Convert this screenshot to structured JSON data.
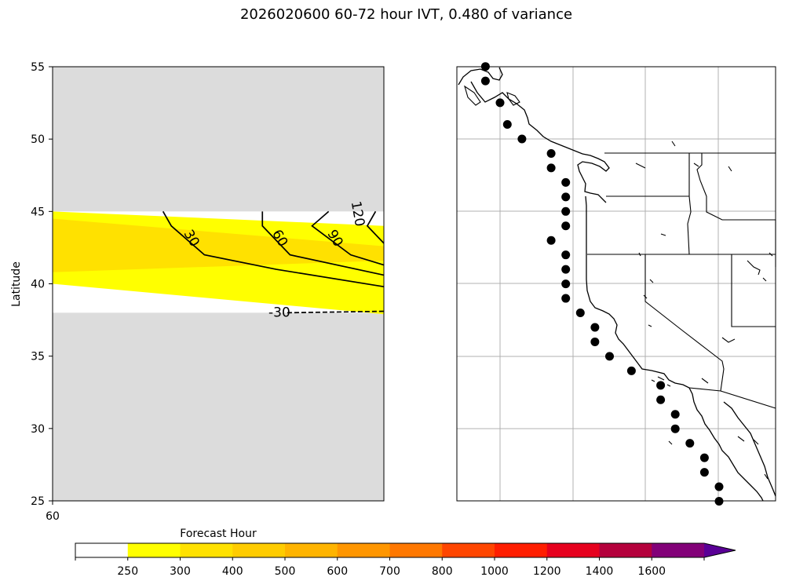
{
  "figure": {
    "title": "2026020600 60-72 hour IVT, 0.480 of variance"
  },
  "chart_data": [
    {
      "type": "heatmap",
      "panel": "left",
      "ylabel": "Latitude",
      "xlabel": "",
      "ylim": [
        25,
        55
      ],
      "xlim": [
        60,
        72
      ],
      "ytick_labels": [
        "25",
        "30",
        "35",
        "40",
        "45",
        "50",
        "55"
      ],
      "yticks": [
        25,
        30,
        35,
        40,
        45,
        50,
        55
      ],
      "xtick_labels": [
        "60"
      ],
      "xticks": [
        60
      ],
      "background": "masked (gray) outside 38–45 N",
      "valid_band_lat": [
        38,
        45
      ],
      "fill_bands": [
        {
          "color": "#ffff00",
          "level_range": "250-300",
          "lat_top_at_x60": 45.0,
          "lat_top_at_x72": 44.0,
          "lat_bottom_at_x60": 40.0,
          "lat_bottom_at_x72": 37.9
        },
        {
          "color": "#ffe100",
          "level_range": "300-400",
          "lat_top_at_x60": 44.5,
          "lat_top_at_x72": 42.6,
          "lat_bottom_at_x60": 40.8,
          "lat_bottom_at_x72": 41.6
        }
      ],
      "contours": [
        {
          "label": "30",
          "points": [
            [
              64.0,
              45.0
            ],
            [
              64.3,
              44.0
            ],
            [
              65.5,
              42.0
            ],
            [
              68.1,
              41.0
            ],
            [
              72.0,
              39.8
            ]
          ]
        },
        {
          "label": "60",
          "points": [
            [
              67.6,
              45.0
            ],
            [
              67.6,
              44.0
            ],
            [
              68.6,
              42.0
            ],
            [
              72.0,
              40.6
            ]
          ]
        },
        {
          "label": "90",
          "points": [
            [
              70.0,
              45.0
            ],
            [
              69.4,
              44.0
            ],
            [
              70.8,
              42.0
            ],
            [
              72.0,
              41.3
            ]
          ]
        },
        {
          "label": "120",
          "points": [
            [
              71.7,
              45.0
            ],
            [
              71.4,
              44.0
            ],
            [
              72.0,
              42.8
            ]
          ]
        },
        {
          "label": "-30",
          "dashed": true,
          "points": [
            [
              68.5,
              38.0
            ],
            [
              72.0,
              38.1
            ]
          ]
        }
      ]
    },
    {
      "type": "scatter",
      "panel": "right",
      "description_kind": "map",
      "points_lat": [
        55,
        54,
        52.5,
        51,
        50,
        49,
        48,
        47,
        46,
        45,
        44,
        43,
        42,
        41,
        40,
        39,
        38,
        37,
        36,
        35,
        34,
        33,
        32,
        31,
        30,
        29,
        28,
        27,
        26,
        25
      ],
      "points_lon": [
        -131,
        -131,
        -130,
        -129.5,
        -128.5,
        -126.5,
        -126.5,
        -125.5,
        -125.5,
        -125.5,
        -125.5,
        -126.5,
        -125.5,
        -125.5,
        -125.5,
        -125.5,
        -124.5,
        -123.5,
        -123.5,
        -122.5,
        -121,
        -119,
        -119,
        -118,
        -118,
        -117,
        -116,
        -116,
        -115,
        -115
      ]
    }
  ],
  "colorbar": {
    "label": "Forecast Hour",
    "levels": [
      "250",
      "300",
      "400",
      "500",
      "600",
      "700",
      "800",
      "1000",
      "1200",
      "1400",
      "1600"
    ],
    "colors": [
      "#ffffff",
      "#ffff00",
      "#ffe100",
      "#ffcc00",
      "#ffb400",
      "#ff9600",
      "#ff7800",
      "#ff4600",
      "#ff1e00",
      "#e6001e",
      "#b4003c",
      "#820078",
      "#5a0096"
    ]
  }
}
